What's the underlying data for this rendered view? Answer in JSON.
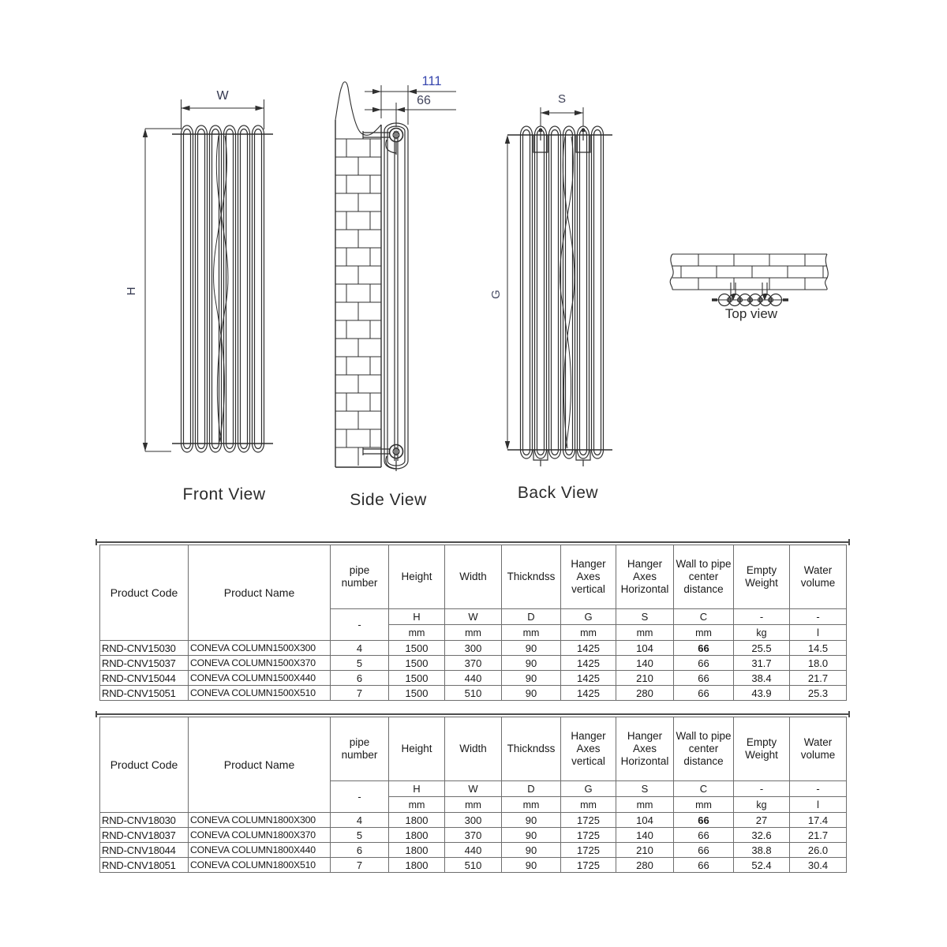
{
  "drawings": {
    "front_view": {
      "title": "Front View",
      "width_label": "W",
      "height_label": "H"
    },
    "side_view": {
      "title": "Side View",
      "dim_wall_to_back": "111",
      "dim_wall_to_center": "66"
    },
    "back_view": {
      "title": "Back View",
      "hanger_spacing_label": "S",
      "hanger_height_label": "G"
    },
    "top_view": {
      "title": "Top view"
    }
  },
  "tables": [
    {
      "columns": [
        "Product Code",
        "Product Name",
        "pipe number",
        "Height",
        "Width",
        "Thickndss",
        "Hanger Axes vertical",
        "Hanger Axes Horizontal",
        "Wall to pipe center distance",
        "Empty Weight",
        "Water volume"
      ],
      "symbols": [
        "-",
        "H",
        "W",
        "D",
        "G",
        "S",
        "C",
        "-",
        "-"
      ],
      "units": [
        "mm",
        "mm",
        "mm",
        "mm",
        "mm",
        "mm",
        "kg",
        "l"
      ],
      "rows": [
        [
          "RND-CNV15030",
          "CONEVA COLUMN1500X300",
          "4",
          "1500",
          "300",
          "90",
          "1425",
          "104",
          "66",
          "25.5",
          "14.5"
        ],
        [
          "RND-CNV15037",
          "CONEVA COLUMN1500X370",
          "5",
          "1500",
          "370",
          "90",
          "1425",
          "140",
          "66",
          "31.7",
          "18.0"
        ],
        [
          "RND-CNV15044",
          "CONEVA COLUMN1500X440",
          "6",
          "1500",
          "440",
          "90",
          "1425",
          "210",
          "66",
          "38.4",
          "21.7"
        ],
        [
          "RND-CNV15051",
          "CONEVA COLUMN1500X510",
          "7",
          "1500",
          "510",
          "90",
          "1425",
          "280",
          "66",
          "43.9",
          "25.3"
        ]
      ],
      "bold_cells": [
        {
          "row": 0,
          "col": 8
        }
      ]
    },
    {
      "columns": [
        "Product Code",
        "Product Name",
        "pipe number",
        "Height",
        "Width",
        "Thickndss",
        "Hanger Axes vertical",
        "Hanger Axes Horizontal",
        "Wall to pipe center distance",
        "Empty Weight",
        "Water volume"
      ],
      "symbols": [
        "-",
        "H",
        "W",
        "D",
        "G",
        "S",
        "C",
        "-",
        "-"
      ],
      "units": [
        "mm",
        "mm",
        "mm",
        "mm",
        "mm",
        "mm",
        "kg",
        "l"
      ],
      "rows": [
        [
          "RND-CNV18030",
          "CONEVA COLUMN1800X300",
          "4",
          "1800",
          "300",
          "90",
          "1725",
          "104",
          "66",
          "27",
          "17.4"
        ],
        [
          "RND-CNV18037",
          "CONEVA COLUMN1800X370",
          "5",
          "1800",
          "370",
          "90",
          "1725",
          "140",
          "66",
          "32.6",
          "21.7"
        ],
        [
          "RND-CNV18044",
          "CONEVA COLUMN1800X440",
          "6",
          "1800",
          "440",
          "90",
          "1725",
          "210",
          "66",
          "38.8",
          "26.0"
        ],
        [
          "RND-CNV18051",
          "CONEVA COLUMN1800X510",
          "7",
          "1800",
          "510",
          "90",
          "1725",
          "280",
          "66",
          "52.4",
          "30.4"
        ]
      ],
      "bold_cells": [
        {
          "row": 0,
          "col": 8
        }
      ]
    }
  ]
}
